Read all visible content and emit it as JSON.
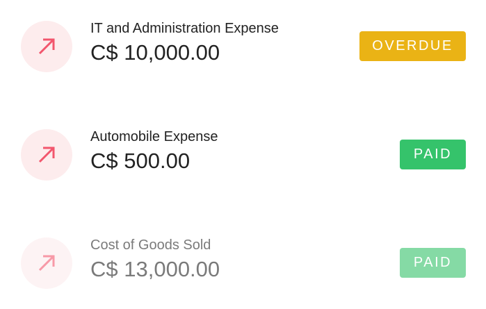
{
  "colors": {
    "overdue": "#eab315",
    "paid": "#35c36b",
    "icon_bg": "#fdeced",
    "icon_arrow": "#f2566d"
  },
  "items": [
    {
      "title": "IT and Administration Expense",
      "amount": "C$ 10,000.00",
      "status": "OVERDUE",
      "icon": "arrow-up-right-icon"
    },
    {
      "title": "Automobile Expense",
      "amount": "C$ 500.00",
      "status": "PAID",
      "icon": "arrow-up-right-icon"
    },
    {
      "title": "Cost of Goods Sold",
      "amount": "C$ 13,000.00",
      "status": "PAID",
      "icon": "arrow-up-right-icon"
    }
  ]
}
